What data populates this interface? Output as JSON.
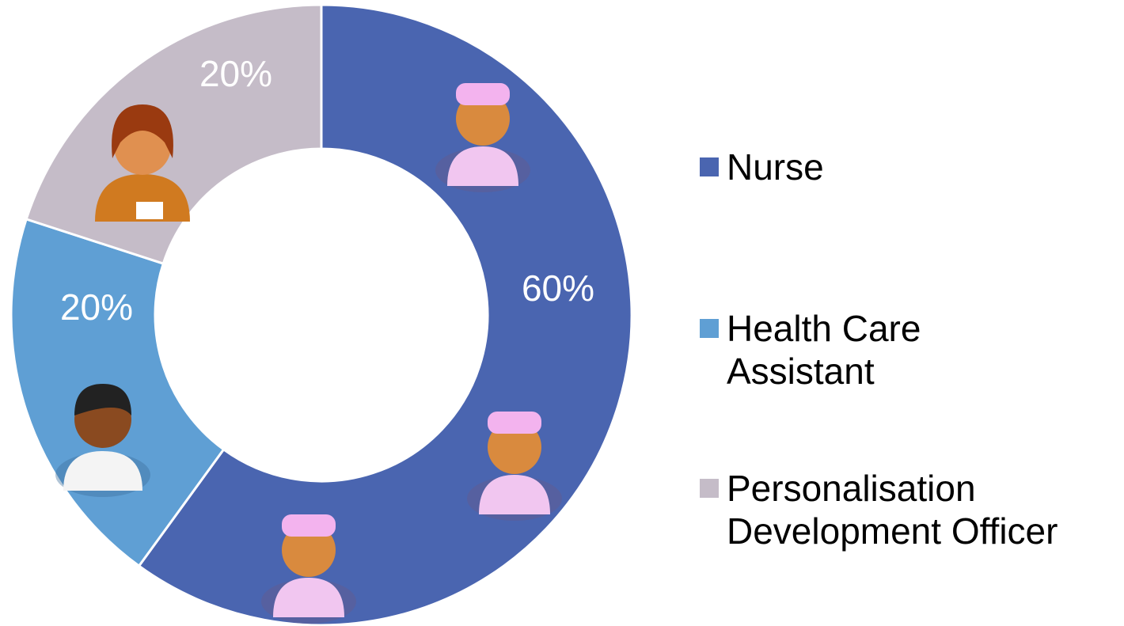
{
  "chart_data": {
    "type": "donut",
    "categories": [
      "Nurse",
      "Health Care Assistant",
      "Personalisation Development Officer"
    ],
    "values": [
      60,
      20,
      20
    ],
    "value_labels": [
      "60%",
      "20%",
      "20%"
    ],
    "colors": [
      "#4a65b0",
      "#5f9fd4",
      "#c5bcc8"
    ],
    "legend": "right"
  }
}
